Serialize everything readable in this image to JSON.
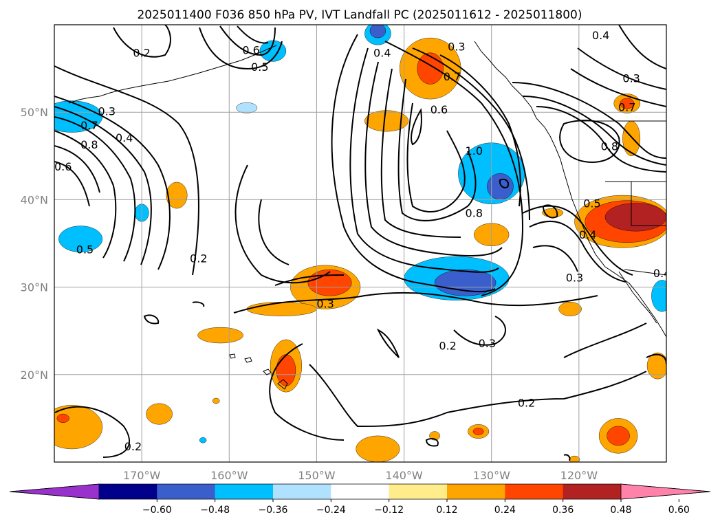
{
  "title": "2025011400 F036 850 hPa PV, IVT Landfall PC (2025011612 - 2025011800)",
  "map": {
    "lon_range": [
      -180,
      -110
    ],
    "lat_range": [
      10,
      60
    ],
    "lon_ticks": [
      {
        "value": -170,
        "label": "170°W"
      },
      {
        "value": -160,
        "label": "160°W"
      },
      {
        "value": -150,
        "label": "150°W"
      },
      {
        "value": -140,
        "label": "140°W"
      },
      {
        "value": -130,
        "label": "130°W"
      },
      {
        "value": -120,
        "label": "120°W"
      }
    ],
    "lat_ticks": [
      {
        "value": 20,
        "label": "20°N"
      },
      {
        "value": 30,
        "label": "30°N"
      },
      {
        "value": 40,
        "label": "40°N"
      },
      {
        "value": 50,
        "label": "50°N"
      }
    ],
    "grid": true,
    "grid_color": "#a0a0a0",
    "contour_labels": [
      {
        "lon": -170,
        "lat": 56.5,
        "text": "0.2"
      },
      {
        "lon": -157.5,
        "lat": 56.8,
        "text": "0.6"
      },
      {
        "lon": -156.5,
        "lat": 54.9,
        "text": "0.5"
      },
      {
        "lon": -174,
        "lat": 49.8,
        "text": "0.3"
      },
      {
        "lon": -172,
        "lat": 46.8,
        "text": "0.4"
      },
      {
        "lon": -176,
        "lat": 48.2,
        "text": "0.7"
      },
      {
        "lon": -176,
        "lat": 46,
        "text": "0.8"
      },
      {
        "lon": -179,
        "lat": 43.5,
        "text": "0.6"
      },
      {
        "lon": -176.5,
        "lat": 34,
        "text": "0.5"
      },
      {
        "lon": -163.5,
        "lat": 33,
        "text": "0.2"
      },
      {
        "lon": -142.5,
        "lat": 56.5,
        "text": "0.4"
      },
      {
        "lon": -134,
        "lat": 57.2,
        "text": "0.3"
      },
      {
        "lon": -134.5,
        "lat": 53.8,
        "text": "0.7"
      },
      {
        "lon": -136,
        "lat": 50,
        "text": "0.6"
      },
      {
        "lon": -132,
        "lat": 45.3,
        "text": "1.0"
      },
      {
        "lon": -132,
        "lat": 38.2,
        "text": "0.8"
      },
      {
        "lon": -117.5,
        "lat": 58.5,
        "text": "0.4"
      },
      {
        "lon": -114,
        "lat": 53.6,
        "text": "0.3"
      },
      {
        "lon": -114.5,
        "lat": 50.3,
        "text": "0.7"
      },
      {
        "lon": -116.5,
        "lat": 45.8,
        "text": "0.8"
      },
      {
        "lon": -118.5,
        "lat": 39.3,
        "text": "0.5"
      },
      {
        "lon": -119,
        "lat": 35.7,
        "text": "0.4"
      },
      {
        "lon": -120.5,
        "lat": 30.8,
        "text": "0.3"
      },
      {
        "lon": -110.5,
        "lat": 31.3,
        "text": "0.4"
      },
      {
        "lon": -149,
        "lat": 27.8,
        "text": "0.3"
      },
      {
        "lon": -135,
        "lat": 23,
        "text": "0.2"
      },
      {
        "lon": -130.5,
        "lat": 23.3,
        "text": "0.3"
      },
      {
        "lon": -126,
        "lat": 16.5,
        "text": "0.2"
      },
      {
        "lon": -171,
        "lat": 11.5,
        "text": "0.2"
      }
    ]
  },
  "colorbar": {
    "levels": [
      -0.72,
      -0.6,
      -0.48,
      -0.36,
      -0.24,
      -0.12,
      0.12,
      0.24,
      0.36,
      0.48,
      0.6,
      0.72
    ],
    "colors": [
      "#9932cc",
      "#00008b",
      "#3a5fcd",
      "#00bfff",
      "#b0e2ff",
      "#ffffff",
      "#ffec8b",
      "#ffa500",
      "#ff4500",
      "#b22222",
      "#ff82ab"
    ],
    "tick_labels": [
      {
        "value": -0.6,
        "label": "−0.60"
      },
      {
        "value": -0.48,
        "label": "−0.48"
      },
      {
        "value": -0.36,
        "label": "−0.36"
      },
      {
        "value": -0.24,
        "label": "−0.24"
      },
      {
        "value": -0.12,
        "label": "−0.12"
      },
      {
        "value": 0.12,
        "label": "0.12"
      },
      {
        "value": 0.24,
        "label": "0.24"
      },
      {
        "value": 0.36,
        "label": "0.36"
      },
      {
        "value": 0.48,
        "label": "0.48"
      },
      {
        "value": 0.6,
        "label": "0.60"
      }
    ],
    "extend": "both"
  },
  "shaded_blobs": [
    {
      "lon": -178,
      "lat": 49.5,
      "rlon": 3.5,
      "rlat": 1.8,
      "color": "#00bfff"
    },
    {
      "lon": -177,
      "lat": 35.5,
      "rlon": 2.5,
      "rlat": 1.5,
      "color": "#00bfff"
    },
    {
      "lon": -170,
      "lat": 38.5,
      "rlon": 0.8,
      "rlat": 1,
      "color": "#00bfff"
    },
    {
      "lon": -163,
      "lat": 12.5,
      "rlon": 0,
      "rlat": 0,
      "color": "#00bfff"
    },
    {
      "lon": -155,
      "lat": 57,
      "rlon": 1.5,
      "rlat": 1.2,
      "color": "#00bfff"
    },
    {
      "lon": -143,
      "lat": 59,
      "rlon": 1.5,
      "rlat": 1.3,
      "color": "#00bfff"
    },
    {
      "lon": -143,
      "lat": 59.3,
      "rlon": 0.9,
      "rlat": 0.8,
      "color": "#3a5fcd"
    },
    {
      "lon": -158,
      "lat": 50.5,
      "rlon": 1.2,
      "rlat": 0.6,
      "color": "#b0e2ff"
    },
    {
      "lon": -130,
      "lat": 43,
      "rlon": 3.8,
      "rlat": 3.5,
      "color": "#00bfff"
    },
    {
      "lon": -129,
      "lat": 41.5,
      "rlon": 1.5,
      "rlat": 1.5,
      "color": "#3a5fcd"
    },
    {
      "lon": -134,
      "lat": 31,
      "rlon": 6,
      "rlat": 2.5,
      "color": "#00bfff"
    },
    {
      "lon": -133,
      "lat": 30.5,
      "rlon": 3.5,
      "rlat": 1.5,
      "color": "#3a5fcd"
    },
    {
      "lon": -110.5,
      "lat": 29,
      "rlon": 1.2,
      "rlat": 1.8,
      "color": "#00bfff"
    },
    {
      "lon": -137,
      "lat": 55,
      "rlon": 3.5,
      "rlat": 3.5,
      "color": "#ffa500"
    },
    {
      "lon": -137,
      "lat": 55,
      "rlon": 1.5,
      "rlat": 1.8,
      "color": "#ff4500"
    },
    {
      "lon": -142,
      "lat": 49,
      "rlon": 2.5,
      "rlat": 1.2,
      "color": "#ffa500"
    },
    {
      "lon": -166,
      "lat": 40.5,
      "rlon": 1.2,
      "rlat": 1.5,
      "color": "#ffa500"
    },
    {
      "lon": -149,
      "lat": 30,
      "rlon": 4,
      "rlat": 2.5,
      "color": "#ffa500"
    },
    {
      "lon": -148.5,
      "lat": 30.5,
      "rlon": 2.5,
      "rlat": 1.5,
      "color": "#ff4500"
    },
    {
      "lon": -154,
      "lat": 27.5,
      "rlon": 4,
      "rlat": 0.8,
      "color": "#ffa500"
    },
    {
      "lon": -130,
      "lat": 36,
      "rlon": 2,
      "rlat": 1.3,
      "color": "#ffa500"
    },
    {
      "lon": -114.5,
      "lat": 51,
      "rlon": 1.5,
      "rlat": 1.1,
      "color": "#ffa500"
    },
    {
      "lon": -114.5,
      "lat": 51,
      "rlon": 0.8,
      "rlat": 0.6,
      "color": "#ff4500"
    },
    {
      "lon": -114,
      "lat": 47,
      "rlon": 1,
      "rlat": 2,
      "color": "#ffa500"
    },
    {
      "lon": -115,
      "lat": 37.5,
      "rlon": 5.5,
      "rlat": 3,
      "color": "#ffa500"
    },
    {
      "lon": -114.5,
      "lat": 37.5,
      "rlon": 4.8,
      "rlat": 2.4,
      "color": "#ff4500"
    },
    {
      "lon": -113.5,
      "lat": 38,
      "rlon": 3.5,
      "rlat": 1.6,
      "color": "#b22222"
    },
    {
      "lon": -123,
      "lat": 38.5,
      "rlon": 1.2,
      "rlat": 0.5,
      "color": "#ffa500"
    },
    {
      "lon": -121,
      "lat": 27.5,
      "rlon": 1.3,
      "rlat": 0.8,
      "color": "#ffa500"
    },
    {
      "lon": -161,
      "lat": 24.5,
      "rlon": 2.6,
      "rlat": 0.9,
      "color": "#ffa500"
    },
    {
      "lon": -153.5,
      "lat": 21,
      "rlon": 1.8,
      "rlat": 3,
      "color": "#ffa500"
    },
    {
      "lon": -153.5,
      "lat": 20.5,
      "rlon": 1.1,
      "rlat": 1.8,
      "color": "#ff4500"
    },
    {
      "lon": -168,
      "lat": 15.5,
      "rlon": 1.5,
      "rlat": 1.2,
      "color": "#ffa500"
    },
    {
      "lon": -178,
      "lat": 14,
      "rlon": 3.5,
      "rlat": 2.5,
      "color": "#ffa500"
    },
    {
      "lon": -179,
      "lat": 15,
      "rlon": 0.7,
      "rlat": 0.5,
      "color": "#ff4500"
    },
    {
      "lon": -143,
      "lat": 11.5,
      "rlon": 2.5,
      "rlat": 1.5,
      "color": "#ffa500"
    },
    {
      "lon": -131.5,
      "lat": 13.5,
      "rlon": 1.2,
      "rlat": 0.8,
      "color": "#ffa500"
    },
    {
      "lon": -131.5,
      "lat": 13.5,
      "rlon": 0.6,
      "rlat": 0.4,
      "color": "#ff4500"
    },
    {
      "lon": -136.5,
      "lat": 13,
      "rlon": 0.6,
      "rlat": 0.5,
      "color": "#ffa500"
    },
    {
      "lon": -115.5,
      "lat": 13,
      "rlon": 2.2,
      "rlat": 2,
      "color": "#ffa500"
    },
    {
      "lon": -115.5,
      "lat": 13,
      "rlon": 1.3,
      "rlat": 1.1,
      "color": "#ff4500"
    },
    {
      "lon": -111,
      "lat": 21,
      "rlon": 1.2,
      "rlat": 1.5,
      "color": "#ffa500"
    },
    {
      "lon": -120.5,
      "lat": 10.3,
      "rlon": 0.6,
      "rlat": 0.4,
      "color": "#ffa500"
    },
    {
      "lon": -161.5,
      "lat": 17,
      "rlon": 0.4,
      "rlat": 0.3,
      "color": "#ffa500"
    }
  ]
}
